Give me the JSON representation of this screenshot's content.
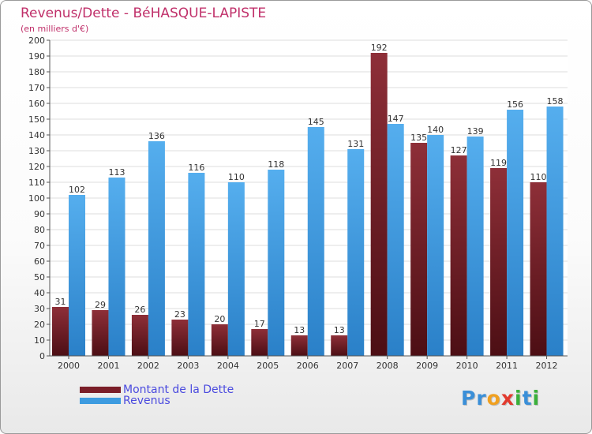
{
  "chart_data": {
    "type": "bar",
    "title": "Revenus/Dette - BéHASQUE-LAPISTE",
    "subtitle": "(en milliers d'€)",
    "xlabel": "",
    "ylabel": "",
    "ylim": [
      0,
      200
    ],
    "yticks": [
      0,
      10,
      20,
      30,
      40,
      50,
      60,
      70,
      80,
      90,
      100,
      110,
      120,
      130,
      140,
      150,
      160,
      170,
      180,
      190,
      200
    ],
    "grid": true,
    "categories": [
      "2000",
      "2001",
      "2002",
      "2003",
      "2004",
      "2005",
      "2006",
      "2007",
      "2008",
      "2009",
      "2010",
      "2011",
      "2012"
    ],
    "series": [
      {
        "name": "Montant de la Dette",
        "color": "#7a1e28",
        "values": [
          31,
          29,
          26,
          23,
          20,
          17,
          13,
          13,
          192,
          135,
          127,
          119,
          110
        ]
      },
      {
        "name": "Revenus",
        "color": "#3d9be0",
        "values": [
          102,
          113,
          136,
          116,
          110,
          118,
          145,
          131,
          147,
          140,
          139,
          156,
          158
        ]
      }
    ],
    "legend_position": "bottom-left"
  },
  "logo": {
    "letters": [
      {
        "char": "P",
        "color": "#3a8fd8"
      },
      {
        "char": "r",
        "color": "#3a8fd8"
      },
      {
        "char": "o",
        "color": "#f0a020"
      },
      {
        "char": "x",
        "color": "#e23a2e"
      },
      {
        "char": "i",
        "color": "#3ab03a"
      },
      {
        "char": "t",
        "color": "#3a8fd8"
      },
      {
        "char": "i",
        "color": "#3ab03a"
      }
    ]
  }
}
